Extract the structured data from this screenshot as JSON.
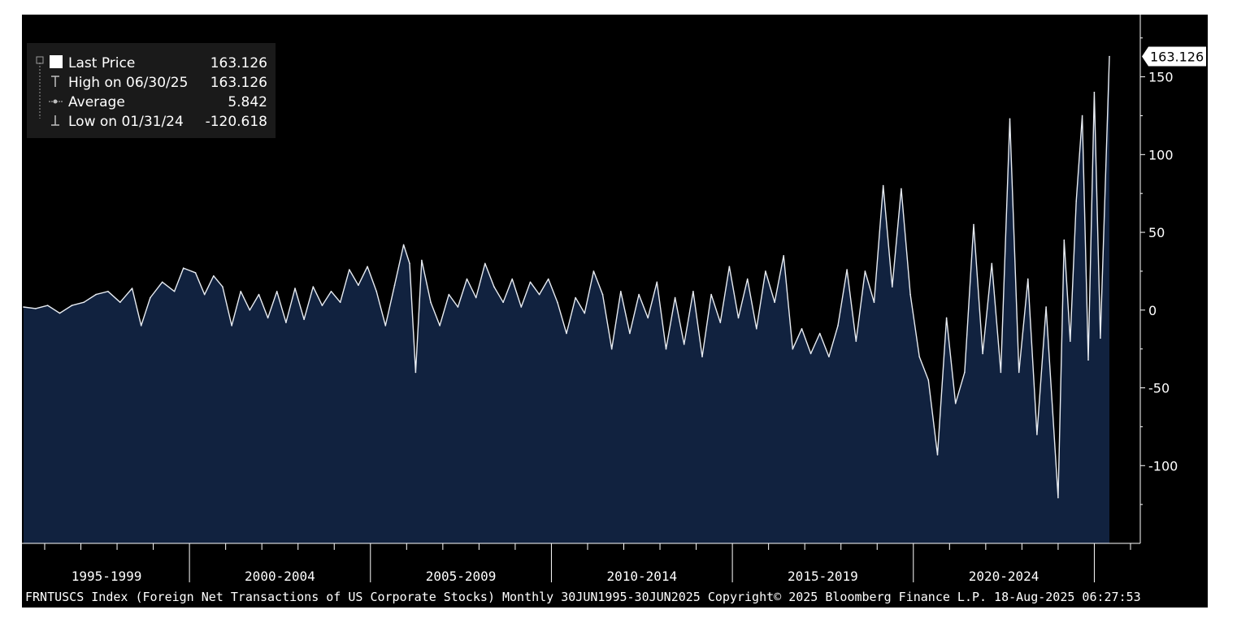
{
  "legend": {
    "last_label": "Last Price",
    "last_value": "163.126",
    "high_label": "High on 06/30/25",
    "high_value": "163.126",
    "avg_label": "Average",
    "avg_value": "5.842",
    "low_label": "Low on 01/31/24",
    "low_value": "-120.618"
  },
  "last_flag": "163.126",
  "footer": "FRNTUSCS Index (Foreign Net Transactions of US Corporate Stocks)  Monthly 30JUN1995-30JUN2025 Copyright© 2025 Bloomberg Finance L.P. 18-Aug-2025 06:27:53",
  "colors": {
    "background": "#000000",
    "area_fill": "#11223f",
    "line": "#e8ecf2",
    "axis": "#ffffff"
  },
  "chart_data": {
    "type": "area",
    "x_start": "1995-06",
    "x_end": "2025-06",
    "frequency": "monthly",
    "period_labels": [
      "1995-1999",
      "2000-2004",
      "2005-2009",
      "2010-2014",
      "2015-2019",
      "2020-2024"
    ],
    "y_ticks": [
      150,
      100,
      50,
      0,
      -50,
      -100
    ],
    "ylim": [
      -150,
      190
    ],
    "y_axis_side": "right",
    "legend_position": "top-left",
    "grid": false,
    "series": [
      {
        "name": "Last Price",
        "points": [
          [
            "1995-06",
            2
          ],
          [
            "1995-10",
            1
          ],
          [
            "1996-02",
            3
          ],
          [
            "1996-06",
            -2
          ],
          [
            "1996-10",
            3
          ],
          [
            "1997-02",
            5
          ],
          [
            "1997-06",
            10
          ],
          [
            "1997-10",
            12
          ],
          [
            "1998-02",
            5
          ],
          [
            "1998-06",
            14
          ],
          [
            "1998-09",
            -10
          ],
          [
            "1998-12",
            8
          ],
          [
            "1999-04",
            18
          ],
          [
            "1999-08",
            12
          ],
          [
            "1999-11",
            27
          ],
          [
            "2000-03",
            24
          ],
          [
            "2000-06",
            10
          ],
          [
            "2000-09",
            22
          ],
          [
            "2000-12",
            15
          ],
          [
            "2001-03",
            -10
          ],
          [
            "2001-06",
            12
          ],
          [
            "2001-09",
            0
          ],
          [
            "2001-12",
            10
          ],
          [
            "2002-03",
            -5
          ],
          [
            "2002-06",
            12
          ],
          [
            "2002-09",
            -8
          ],
          [
            "2002-12",
            14
          ],
          [
            "2003-03",
            -6
          ],
          [
            "2003-06",
            15
          ],
          [
            "2003-09",
            3
          ],
          [
            "2003-12",
            12
          ],
          [
            "2004-03",
            5
          ],
          [
            "2004-06",
            26
          ],
          [
            "2004-09",
            16
          ],
          [
            "2004-12",
            28
          ],
          [
            "2005-03",
            12
          ],
          [
            "2005-06",
            -10
          ],
          [
            "2005-09",
            16
          ],
          [
            "2005-12",
            42
          ],
          [
            "2006-02",
            30
          ],
          [
            "2006-04",
            -40
          ],
          [
            "2006-06",
            32
          ],
          [
            "2006-09",
            5
          ],
          [
            "2006-12",
            -10
          ],
          [
            "2007-03",
            10
          ],
          [
            "2007-06",
            2
          ],
          [
            "2007-09",
            20
          ],
          [
            "2007-12",
            8
          ],
          [
            "2008-03",
            30
          ],
          [
            "2008-06",
            15
          ],
          [
            "2008-09",
            5
          ],
          [
            "2008-12",
            20
          ],
          [
            "2009-03",
            2
          ],
          [
            "2009-06",
            18
          ],
          [
            "2009-09",
            10
          ],
          [
            "2009-12",
            20
          ],
          [
            "2010-03",
            5
          ],
          [
            "2010-06",
            -15
          ],
          [
            "2010-09",
            8
          ],
          [
            "2010-12",
            -2
          ],
          [
            "2011-03",
            25
          ],
          [
            "2011-06",
            10
          ],
          [
            "2011-09",
            -25
          ],
          [
            "2011-12",
            12
          ],
          [
            "2012-03",
            -15
          ],
          [
            "2012-06",
            10
          ],
          [
            "2012-09",
            -5
          ],
          [
            "2012-12",
            18
          ],
          [
            "2013-03",
            -25
          ],
          [
            "2013-06",
            8
          ],
          [
            "2013-09",
            -22
          ],
          [
            "2013-12",
            12
          ],
          [
            "2014-03",
            -30
          ],
          [
            "2014-06",
            10
          ],
          [
            "2014-09",
            -8
          ],
          [
            "2014-12",
            28
          ],
          [
            "2015-03",
            -5
          ],
          [
            "2015-06",
            20
          ],
          [
            "2015-09",
            -12
          ],
          [
            "2015-12",
            25
          ],
          [
            "2016-03",
            5
          ],
          [
            "2016-06",
            35
          ],
          [
            "2016-09",
            -25
          ],
          [
            "2016-12",
            -12
          ],
          [
            "2017-03",
            -28
          ],
          [
            "2017-06",
            -15
          ],
          [
            "2017-09",
            -30
          ],
          [
            "2017-12",
            -10
          ],
          [
            "2018-03",
            26
          ],
          [
            "2018-06",
            -20
          ],
          [
            "2018-09",
            25
          ],
          [
            "2018-12",
            5
          ],
          [
            "2019-03",
            80
          ],
          [
            "2019-06",
            15
          ],
          [
            "2019-09",
            78
          ],
          [
            "2019-12",
            10
          ],
          [
            "2020-03",
            -30
          ],
          [
            "2020-06",
            -45
          ],
          [
            "2020-09",
            -93
          ],
          [
            "2020-12",
            -5
          ],
          [
            "2021-03",
            -60
          ],
          [
            "2021-06",
            -40
          ],
          [
            "2021-09",
            55
          ],
          [
            "2021-12",
            -28
          ],
          [
            "2022-03",
            30
          ],
          [
            "2022-06",
            -40
          ],
          [
            "2022-09",
            123
          ],
          [
            "2022-12",
            -40
          ],
          [
            "2023-03",
            20
          ],
          [
            "2023-06",
            -80
          ],
          [
            "2023-09",
            2
          ],
          [
            "2024-01",
            -120.618
          ],
          [
            "2024-03",
            45
          ],
          [
            "2024-05",
            -20
          ],
          [
            "2024-07",
            70
          ],
          [
            "2024-09",
            125
          ],
          [
            "2024-11",
            -32
          ],
          [
            "2025-01",
            140
          ],
          [
            "2025-03",
            -18
          ],
          [
            "2025-06",
            163.126
          ]
        ]
      }
    ]
  }
}
